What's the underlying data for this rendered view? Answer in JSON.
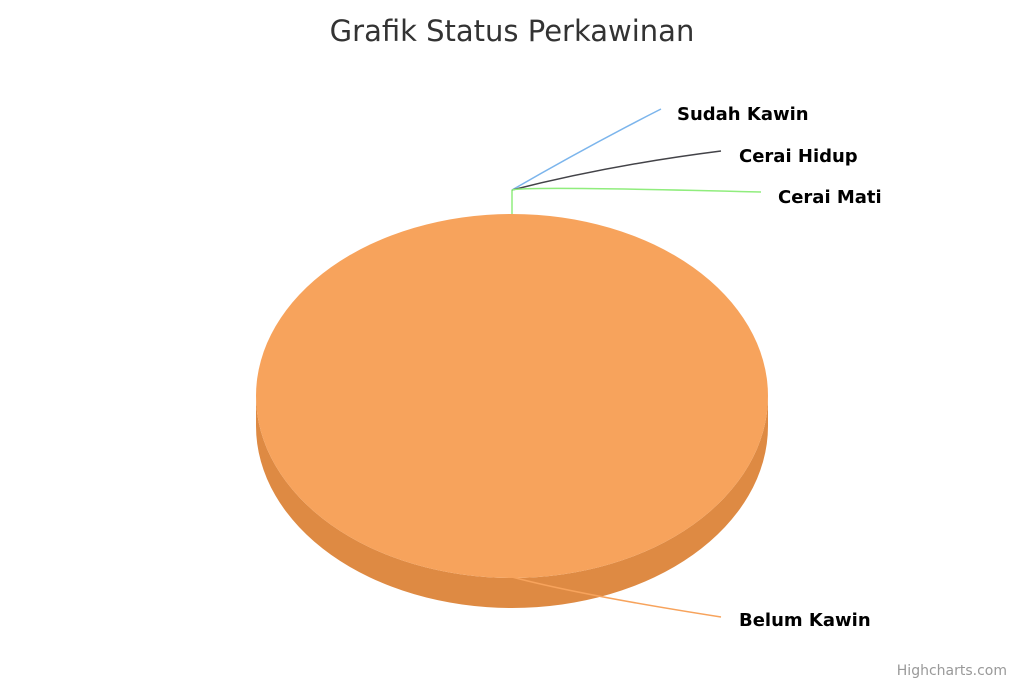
{
  "chart_data": {
    "type": "pie",
    "title": "Grafik Status Perkawinan",
    "credits": "Highcharts.com",
    "slices": [
      {
        "name": "Sudah Kawin",
        "value": 0,
        "color": "#7cb5ec"
      },
      {
        "name": "Cerai Hidup",
        "value": 0,
        "color": "#434348"
      },
      {
        "name": "Cerai Mati",
        "value": 0,
        "color": "#90ed7d"
      },
      {
        "name": "Belum Kawin",
        "value": 100,
        "color": "#f7a35c",
        "side_color": "#de8a43"
      }
    ],
    "legend": false
  }
}
